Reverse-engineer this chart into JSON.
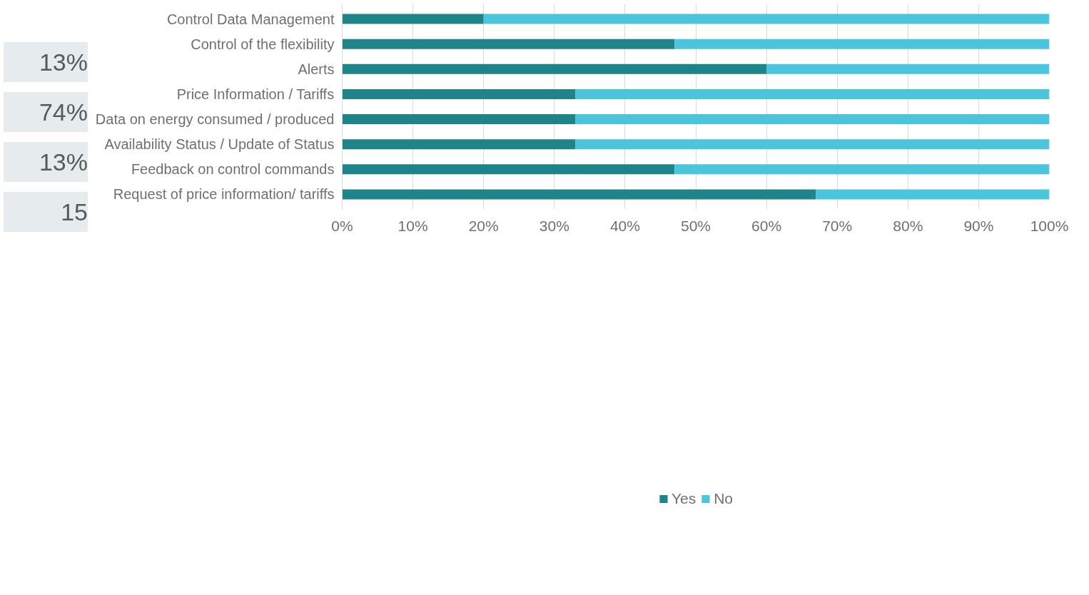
{
  "chart_data": {
    "type": "bar",
    "orientation": "horizontal",
    "stacked": true,
    "categories": [
      "Control Data Management",
      "Control of the flexibility",
      "Alerts",
      "Price Information / Tariffs",
      "Data on energy consumed / produced",
      "Availability Status / Update of Status",
      "Feedback on control commands",
      "Request of price information/ tariffs"
    ],
    "series": [
      {
        "name": "Yes",
        "color": "#1e8489",
        "values": [
          20,
          47,
          60,
          33,
          33,
          33,
          47,
          67
        ]
      },
      {
        "name": "No",
        "color": "#4bc5dc",
        "values": [
          80,
          53,
          40,
          67,
          67,
          67,
          53,
          33
        ]
      }
    ],
    "xlim": [
      0,
      100
    ],
    "xticks": [
      {
        "value": 0,
        "label": "0%"
      },
      {
        "value": 10,
        "label": "10%"
      },
      {
        "value": 20,
        "label": "20%"
      },
      {
        "value": 30,
        "label": "30%"
      },
      {
        "value": 40,
        "label": "40%"
      },
      {
        "value": 50,
        "label": "50%"
      },
      {
        "value": 60,
        "label": "60%"
      },
      {
        "value": 70,
        "label": "70%"
      },
      {
        "value": 80,
        "label": "80%"
      },
      {
        "value": 90,
        "label": "90%"
      },
      {
        "value": 100,
        "label": "100%"
      }
    ],
    "grid": "x",
    "legend": "bottom",
    "annotations": [
      "13%",
      "74%",
      "13%",
      "15"
    ]
  }
}
